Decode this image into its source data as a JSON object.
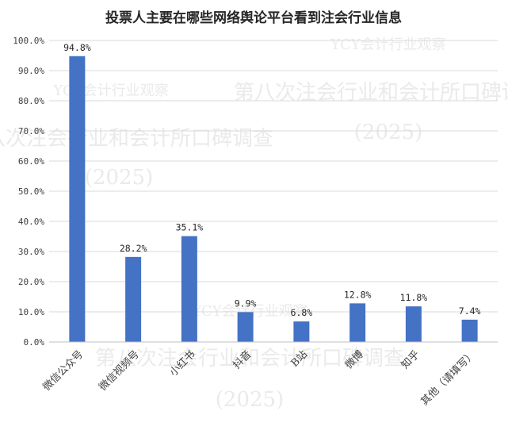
{
  "chart_data": {
    "type": "bar",
    "title": "投票人主要在哪些网络舆论平台看到注会行业信息",
    "categories": [
      "微信公众号",
      "微信视频号",
      "小红书",
      "抖音",
      "B站",
      "微博",
      "知乎",
      "其他（请填写）"
    ],
    "values": [
      94.8,
      28.2,
      35.1,
      9.9,
      6.8,
      12.8,
      11.8,
      7.4
    ],
    "value_labels": [
      "94.8%",
      "28.2%",
      "35.1%",
      "9.9%",
      "6.8%",
      "12.8%",
      "11.8%",
      "7.4%"
    ],
    "yticks": [
      "0.0%",
      "10.0%",
      "20.0%",
      "30.0%",
      "40.0%",
      "50.0%",
      "60.0%",
      "70.0%",
      "80.0%",
      "90.0%",
      "100.0%"
    ],
    "ylim": [
      0,
      100
    ],
    "bar_color": "#4472c4",
    "grid": true,
    "xlabel": "",
    "ylabel": ""
  },
  "watermarks": [
    {
      "line1": "YCY会计行业观察",
      "line2": "第八次注会行业和会计所口碑调查",
      "line3": "(2025)"
    },
    {
      "line1": "YCY会计行业观察",
      "line2": "第八次注会行业和会计所口碑调查",
      "line3": "(2025)"
    },
    {
      "line1": "YCY会计行业观察",
      "line2": "第八次注会行业和会计所口碑调查",
      "line3": "(2025)"
    }
  ]
}
